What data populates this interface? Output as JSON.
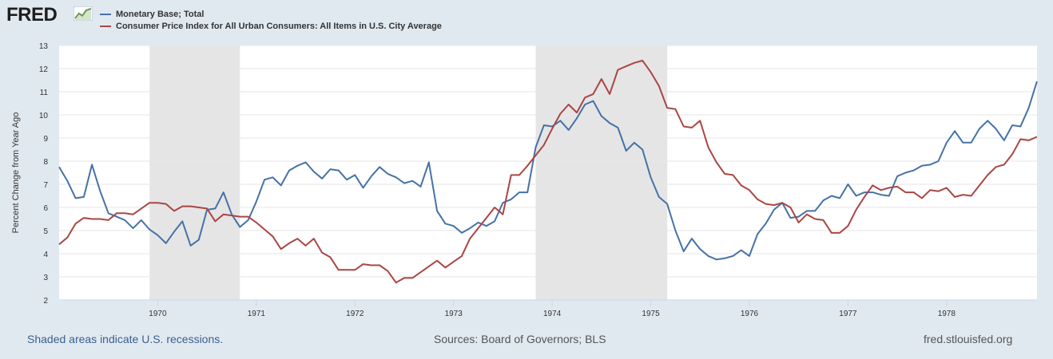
{
  "header": {
    "logo_text": "FRED",
    "logo_icon": "trend-graph-icon"
  },
  "footer": {
    "recession_note": "Shaded areas indicate U.S. recessions.",
    "sources": "Sources: Board of Governors; BLS",
    "site": "fred.stlouisfed.org"
  },
  "colors": {
    "background": "#e1e9f0",
    "plot_background": "#ffffff",
    "recession": "#e5e5e5",
    "monetary_base": "#4572a7",
    "cpi": "#aa4643"
  },
  "chart_data": {
    "type": "line",
    "title": "",
    "xlabel": "",
    "ylabel": "Percent Change from Year Ago",
    "xlim": [
      1969.0,
      1978.917
    ],
    "ylim": [
      2,
      13
    ],
    "yticks": [
      2,
      3,
      4,
      5,
      6,
      7,
      8,
      9,
      10,
      11,
      12,
      13
    ],
    "xticks": [
      {
        "value": 1970,
        "label": "1970"
      },
      {
        "value": 1971,
        "label": "1971"
      },
      {
        "value": 1972,
        "label": "1972"
      },
      {
        "value": 1973,
        "label": "1973"
      },
      {
        "value": 1974,
        "label": "1974"
      },
      {
        "value": 1975,
        "label": "1975"
      },
      {
        "value": 1976,
        "label": "1976"
      },
      {
        "value": 1977,
        "label": "1977"
      },
      {
        "value": 1978,
        "label": "1978"
      }
    ],
    "grid": true,
    "recessions": [
      {
        "start": 1969.917,
        "end": 1970.833
      },
      {
        "start": 1973.833,
        "end": 1975.167
      }
    ],
    "series": [
      {
        "name": "Monetary Base; Total",
        "color": "#4572a7",
        "x_start": 1969.0,
        "x_step": 0.08333,
        "values": [
          7.75,
          7.15,
          6.4,
          6.45,
          7.85,
          6.7,
          5.75,
          5.6,
          5.45,
          5.1,
          5.45,
          5.05,
          4.8,
          4.45,
          4.95,
          5.4,
          4.35,
          4.6,
          5.9,
          5.95,
          6.65,
          5.7,
          5.15,
          5.45,
          6.25,
          7.2,
          7.3,
          6.95,
          7.6,
          7.8,
          7.95,
          7.55,
          7.25,
          7.65,
          7.6,
          7.2,
          7.4,
          6.85,
          7.35,
          7.75,
          7.45,
          7.3,
          7.05,
          7.15,
          6.9,
          7.95,
          5.85,
          5.3,
          5.2,
          4.9,
          5.1,
          5.35,
          5.2,
          5.4,
          6.2,
          6.35,
          6.65,
          6.65,
          8.6,
          9.55,
          9.5,
          9.75,
          9.35,
          9.85,
          10.45,
          10.6,
          9.95,
          9.65,
          9.45,
          8.45,
          8.8,
          8.5,
          7.3,
          6.45,
          6.15,
          5.0,
          4.1,
          4.65,
          4.2,
          3.9,
          3.75,
          3.8,
          3.9,
          4.15,
          3.9,
          4.85,
          5.3,
          5.9,
          6.2,
          5.55,
          5.6,
          5.85,
          5.85,
          6.3,
          6.5,
          6.4,
          7.0,
          6.5,
          6.65,
          6.65,
          6.55,
          6.5,
          7.35,
          7.5,
          7.6,
          7.8,
          7.85,
          8.0,
          8.8,
          9.3,
          8.8,
          8.8,
          9.4,
          9.75,
          9.4,
          8.9,
          9.55,
          9.5,
          10.3,
          11.45
        ]
      },
      {
        "name": "Consumer Price Index for All Urban Consumers: All Items in U.S. City Average",
        "color": "#aa4643",
        "x_start": 1969.0,
        "x_step": 0.08333,
        "values": [
          4.4,
          4.7,
          5.3,
          5.55,
          5.5,
          5.5,
          5.45,
          5.75,
          5.75,
          5.7,
          5.95,
          6.2,
          6.2,
          6.15,
          5.85,
          6.05,
          6.05,
          6.0,
          5.95,
          5.4,
          5.7,
          5.65,
          5.6,
          5.6,
          5.35,
          5.05,
          4.75,
          4.2,
          4.45,
          4.65,
          4.35,
          4.65,
          4.05,
          3.85,
          3.3,
          3.3,
          3.3,
          3.55,
          3.5,
          3.5,
          3.25,
          2.75,
          2.95,
          2.95,
          3.2,
          3.45,
          3.7,
          3.4,
          3.65,
          3.9,
          4.65,
          5.1,
          5.55,
          6.0,
          5.7,
          7.4,
          7.4,
          7.8,
          8.25,
          8.7,
          9.4,
          10.05,
          10.45,
          10.1,
          10.75,
          10.9,
          11.55,
          10.9,
          11.95,
          12.1,
          12.25,
          12.35,
          11.85,
          11.25,
          10.3,
          10.25,
          9.5,
          9.45,
          9.75,
          8.6,
          7.95,
          7.45,
          7.4,
          6.95,
          6.75,
          6.35,
          6.15,
          6.1,
          6.2,
          6.0,
          5.35,
          5.7,
          5.5,
          5.45,
          4.9,
          4.9,
          5.2,
          5.9,
          6.45,
          6.95,
          6.75,
          6.85,
          6.9,
          6.65,
          6.65,
          6.4,
          6.75,
          6.7,
          6.85,
          6.45,
          6.55,
          6.5,
          6.95,
          7.4,
          7.75,
          7.85,
          8.3,
          8.95,
          8.9,
          9.05
        ]
      }
    ]
  }
}
